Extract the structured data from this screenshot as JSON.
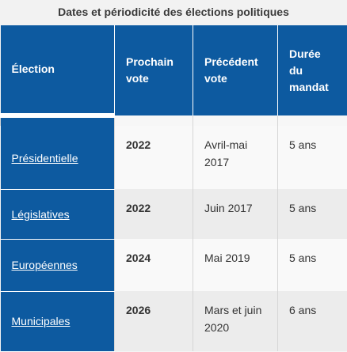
{
  "table": {
    "caption": "Dates et périodicité des élections politiques",
    "headers": {
      "election": "Élection",
      "next_vote": "Prochain vote",
      "previous_vote": "Précédent vote",
      "mandate": "Durée du mandat"
    },
    "rows": [
      {
        "election": "Présidentielle",
        "next": "2022",
        "previous": "Avril-mai 2017",
        "duration": "5 ans"
      },
      {
        "election": "Législatives",
        "next": "2022",
        "previous": "Juin 2017",
        "duration": "5 ans"
      },
      {
        "election": "Européennes",
        "next": "2024",
        "previous": "Mai 2019",
        "duration": "5 ans"
      },
      {
        "election": "Municipales",
        "next": "2026",
        "previous": "Mars et juin 2020",
        "duration": "6 ans"
      }
    ]
  },
  "colors": {
    "header_blue": "#0d5aa0",
    "header_text": "#ffffff"
  }
}
